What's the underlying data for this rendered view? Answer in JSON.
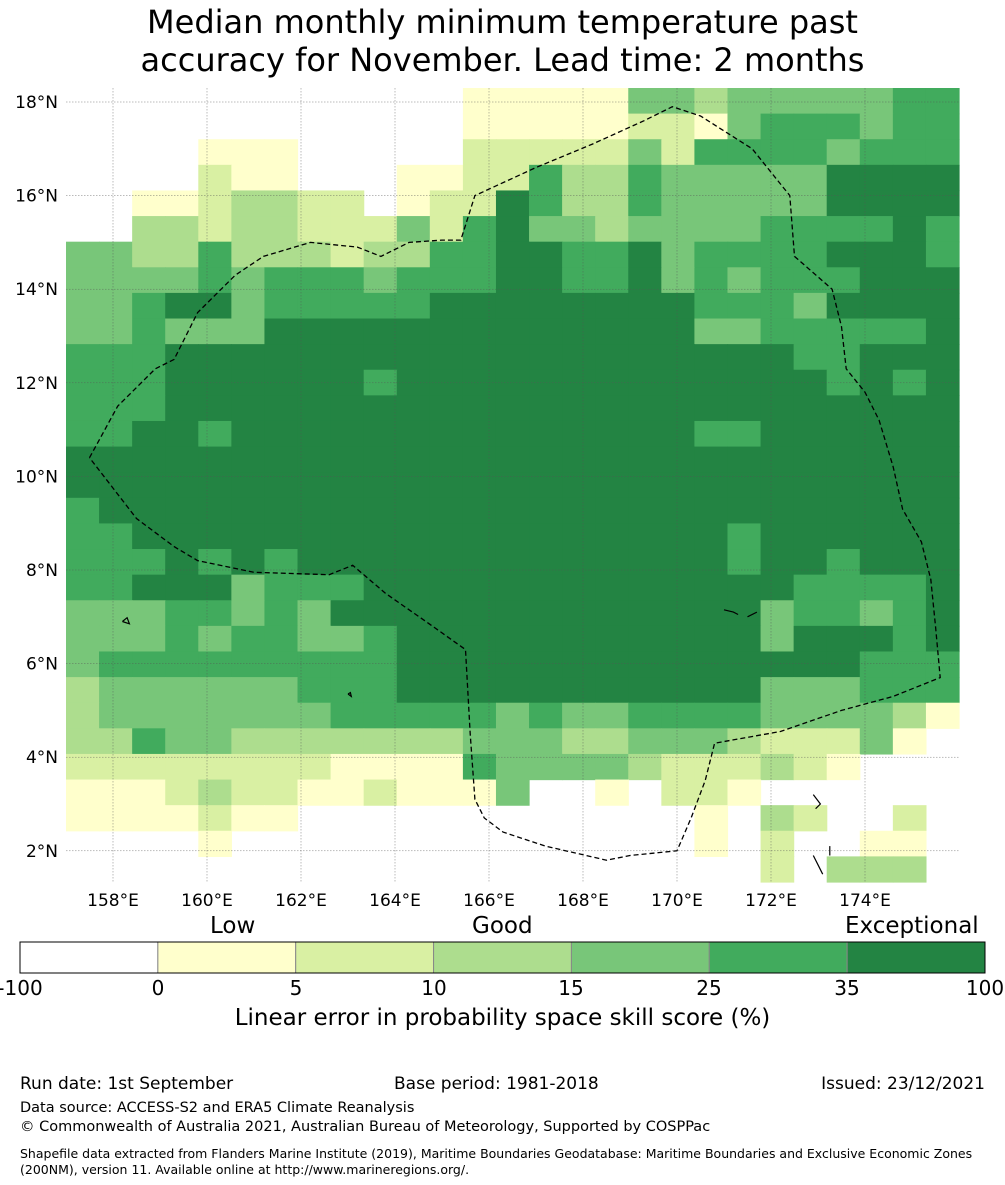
{
  "title": {
    "line1": "Median monthly minimum temperature past",
    "line2": "accuracy for November. Lead time: 2 months"
  },
  "map": {
    "lat_labels": [
      "18°N",
      "16°N",
      "14°N",
      "12°N",
      "10°N",
      "8°N",
      "6°N",
      "4°N",
      "2°N"
    ],
    "lon_labels": [
      "158°E",
      "160°E",
      "162°E",
      "164°E",
      "166°E",
      "168°E",
      "170°E",
      "172°E",
      "174°E"
    ],
    "lon_range": [
      157.0,
      176.0
    ],
    "lat_range": [
      1.5,
      18.3
    ],
    "grid_step_deg": 0.833,
    "category_colors": [
      "#ffffff",
      "#ffffcc",
      "#d9f0a3",
      "#addd8e",
      "#78c679",
      "#41ab5d",
      "#238443"
    ],
    "grid_rows": [
      "000000000000111114434444455",
      "000000000000111112214555455",
      "000011100000222224255554555",
      "000021100011225335444446666",
      "001123322012265335444446666",
      "003323322242564434444555565",
      "443353332335566556455556665",
      "444454555455566556454555666",
      "445664555556666666655546666",
      "445444666666666666644555556",
      "555666666666666666666655666",
      "555666666566666666666665656",
      "555666666666666666666666666",
      "556656666666666666655666666",
      "666666666666666666666666666",
      "666666666666666666666666666",
      "566666666666666666666666666",
      "556666666666666666665666666",
      "555656566666666666665665666",
      "556664555666666666666655556",
      "444554546666666666666455456",
      "444545544566666666666466656",
      "455555555566666666666666555",
      "344444455566666666666444555",
      "344444445555545445555444431",
      "335443333333444334443222410",
      "222222221111544443222321000",
      "111232211211140010221000000",
      "111121100000000000010320020",
      "000010000000000000010200110",
      "000000000000000000000203330"
    ],
    "eez_boundary": [
      [
        157.5,
        10.4
      ],
      [
        158.1,
        11.5
      ],
      [
        158.9,
        12.3
      ],
      [
        159.3,
        12.5
      ],
      [
        159.8,
        13.5
      ],
      [
        160.6,
        14.3
      ],
      [
        161.2,
        14.7
      ],
      [
        162.2,
        15.0
      ],
      [
        163.2,
        14.9
      ],
      [
        163.7,
        14.7
      ],
      [
        164.3,
        15.0
      ],
      [
        165.0,
        15.05
      ],
      [
        165.4,
        15.05
      ],
      [
        165.7,
        16.0
      ],
      [
        167.0,
        16.6
      ],
      [
        168.2,
        17.1
      ],
      [
        169.3,
        17.6
      ],
      [
        169.9,
        17.9
      ],
      [
        170.5,
        17.7
      ],
      [
        171.6,
        17.0
      ],
      [
        172.4,
        16.0
      ],
      [
        172.5,
        14.7
      ],
      [
        173.3,
        14.0
      ],
      [
        173.5,
        13.2
      ],
      [
        173.6,
        12.3
      ],
      [
        174.0,
        11.8
      ],
      [
        174.3,
        11.2
      ],
      [
        174.6,
        10.2
      ],
      [
        174.8,
        9.3
      ],
      [
        175.2,
        8.6
      ],
      [
        175.4,
        7.8
      ],
      [
        175.5,
        6.8
      ],
      [
        175.6,
        5.7
      ],
      [
        174.6,
        5.3
      ],
      [
        173.5,
        5.0
      ],
      [
        172.2,
        4.55
      ],
      [
        170.8,
        4.3
      ],
      [
        170.6,
        3.5
      ],
      [
        170.3,
        2.7
      ],
      [
        170.0,
        2.0
      ],
      [
        169.0,
        1.9
      ],
      [
        168.5,
        1.8
      ],
      [
        167.2,
        2.1
      ],
      [
        166.3,
        2.4
      ],
      [
        165.9,
        2.7
      ],
      [
        165.7,
        3.1
      ],
      [
        165.6,
        4.5
      ],
      [
        165.5,
        6.3
      ],
      [
        164.8,
        6.8
      ],
      [
        163.8,
        7.5
      ],
      [
        163.1,
        8.1
      ],
      [
        162.6,
        7.9
      ],
      [
        161.0,
        7.95
      ],
      [
        159.8,
        8.2
      ],
      [
        159.3,
        8.5
      ],
      [
        158.5,
        9.1
      ],
      [
        157.5,
        10.4
      ]
    ],
    "islands": [
      [
        [
          158.2,
          6.9
        ],
        [
          158.3,
          6.98
        ],
        [
          158.35,
          6.85
        ],
        [
          158.2,
          6.9
        ]
      ],
      [
        [
          163.0,
          5.35
        ],
        [
          163.05,
          5.38
        ],
        [
          163.07,
          5.3
        ],
        [
          163.0,
          5.35
        ]
      ],
      [
        [
          171.0,
          7.15
        ],
        [
          171.2,
          7.1
        ],
        [
          171.3,
          7.05
        ]
      ],
      [
        [
          171.5,
          7.0
        ],
        [
          171.7,
          7.1
        ]
      ],
      [
        [
          172.9,
          3.2
        ],
        [
          173.05,
          3.0
        ],
        [
          172.95,
          2.9
        ]
      ],
      [
        [
          172.9,
          1.9
        ],
        [
          173.0,
          1.7
        ],
        [
          173.1,
          1.5
        ]
      ],
      [
        [
          173.25,
          2.1
        ],
        [
          173.25,
          1.9
        ]
      ]
    ]
  },
  "colorbar": {
    "categories": [
      "Low",
      "Good",
      "Exceptional"
    ],
    "ticks": [
      "-100",
      "0",
      "5",
      "10",
      "15",
      "25",
      "35",
      "100"
    ],
    "colors": [
      "#ffffff",
      "#ffffcc",
      "#d9f0a3",
      "#addd8e",
      "#78c679",
      "#41ab5d",
      "#238443"
    ],
    "caption": "Linear error in probability space skill score (%)"
  },
  "footer": {
    "run_date": "Run date: 1st September",
    "base_period": "Base period: 1981-2018",
    "issued": "Issued: 23/12/2021",
    "data_source": "Data source: ACCESS-S2 and ERA5 Climate Reanalysis",
    "copyright": "© Commonwealth of Australia 2021, Australian Bureau of Meteorology, Supported by COSPPac",
    "shapefile": "Shapefile data extracted from Flanders Marine Institute (2019), Maritime Boundaries Geodatabase: Maritime Boundaries and Exclusive Economic Zones (200NM), version 11. Available online at http://www.marineregions.org/."
  }
}
